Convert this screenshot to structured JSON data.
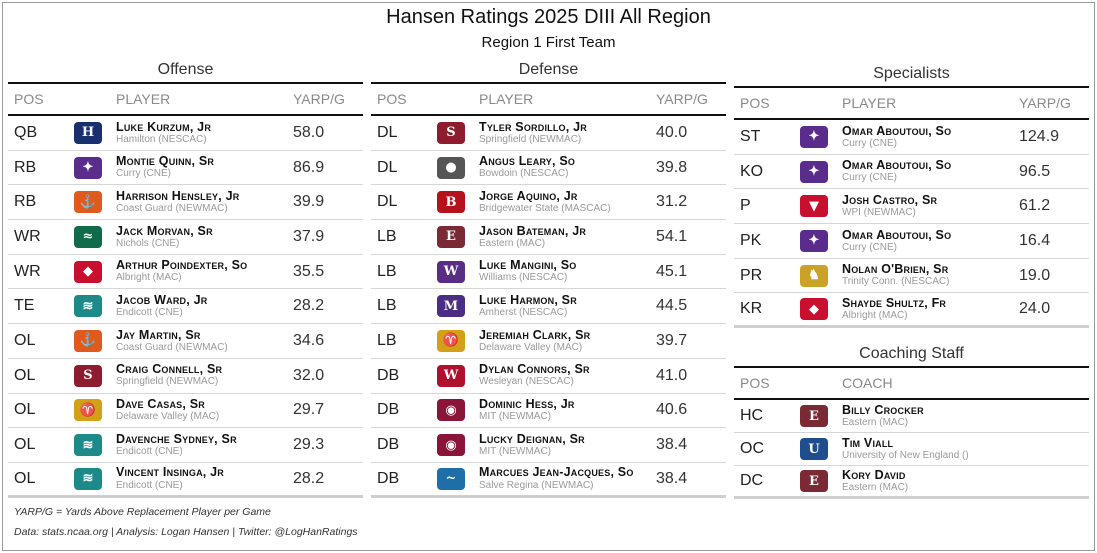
{
  "title": "Hansen Ratings 2025 DIII All Region",
  "subtitle": "Region 1 First Team",
  "headers": {
    "pos": "POS",
    "player": "PLAYER",
    "val": "YARP/G",
    "coach": "COACH"
  },
  "offense": {
    "title": "Offense",
    "rows": [
      {
        "pos": "QB",
        "name": "Luke Kurzum, Jr",
        "team": "Hamilton (NESCAC)",
        "val": "58.0",
        "logo_icon": "hamilton-logo-icon",
        "color": "#1a2f6e"
      },
      {
        "pos": "RB",
        "name": "Montie Quinn, Sr",
        "team": "Curry (CNE)",
        "val": "86.9",
        "logo_icon": "curry-logo-icon",
        "color": "#5a2d8c"
      },
      {
        "pos": "RB",
        "name": "Harrison Hensley, Jr",
        "team": "Coast Guard (NEWMAC)",
        "val": "39.9",
        "logo_icon": "coast-guard-logo-icon",
        "color": "#e05a1e"
      },
      {
        "pos": "WR",
        "name": "Jack Morvan, Sr",
        "team": "Nichols (CNE)",
        "val": "37.9",
        "logo_icon": "nichols-logo-icon",
        "color": "#0f6b4a"
      },
      {
        "pos": "WR",
        "name": "Arthur Poindexter, So",
        "team": "Albright (MAC)",
        "val": "35.5",
        "logo_icon": "albright-logo-icon",
        "color": "#c8102e"
      },
      {
        "pos": "TE",
        "name": "Jacob Ward, Jr",
        "team": "Endicott (CNE)",
        "val": "28.2",
        "logo_icon": "endicott-logo-icon",
        "color": "#1d8a8a"
      },
      {
        "pos": "OL",
        "name": "Jay Martin, Sr",
        "team": "Coast Guard (NEWMAC)",
        "val": "34.6",
        "logo_icon": "coast-guard-logo-icon",
        "color": "#e05a1e"
      },
      {
        "pos": "OL",
        "name": "Craig Connell, Sr",
        "team": "Springfield (NEWMAC)",
        "val": "32.0",
        "logo_icon": "springfield-logo-icon",
        "color": "#8c1c2e"
      },
      {
        "pos": "OL",
        "name": "Dave Casas, Sr",
        "team": "Delaware Valley (MAC)",
        "val": "29.7",
        "logo_icon": "delaware-valley-logo-icon",
        "color": "#d4a017"
      },
      {
        "pos": "OL",
        "name": "Davenche Sydney, Sr",
        "team": "Endicott (CNE)",
        "val": "29.3",
        "logo_icon": "endicott-logo-icon",
        "color": "#1d8a8a"
      },
      {
        "pos": "OL",
        "name": "Vincent Insinga, Jr",
        "team": "Endicott (CNE)",
        "val": "28.2",
        "logo_icon": "endicott-logo-icon",
        "color": "#1d8a8a"
      }
    ]
  },
  "defense": {
    "title": "Defense",
    "rows": [
      {
        "pos": "DL",
        "name": "Tyler Sordillo, Jr",
        "team": "Springfield (NEWMAC)",
        "val": "40.0",
        "logo_icon": "springfield-logo-icon",
        "color": "#8c1c2e"
      },
      {
        "pos": "DL",
        "name": "Angus Leary, So",
        "team": "Bowdoin (NESCAC)",
        "val": "39.8",
        "logo_icon": "bowdoin-logo-icon",
        "color": "#555555"
      },
      {
        "pos": "DL",
        "name": "Jorge Aquino, Jr",
        "team": "Bridgewater State (MASCAC)",
        "val": "31.2",
        "logo_icon": "bridgewater-state-logo-icon",
        "color": "#b5121b"
      },
      {
        "pos": "LB",
        "name": "Jason Bateman, Jr",
        "team": "Eastern (MAC)",
        "val": "54.1",
        "logo_icon": "eastern-logo-icon",
        "color": "#7a2a35"
      },
      {
        "pos": "LB",
        "name": "Luke Mangini, So",
        "team": "Williams (NESCAC)",
        "val": "45.1",
        "logo_icon": "williams-logo-icon",
        "color": "#5b2c83"
      },
      {
        "pos": "LB",
        "name": "Luke Harmon, Sr",
        "team": "Amherst (NESCAC)",
        "val": "44.5",
        "logo_icon": "amherst-logo-icon",
        "color": "#4b2e83"
      },
      {
        "pos": "LB",
        "name": "Jeremiah Clark, Sr",
        "team": "Delaware Valley (MAC)",
        "val": "39.7",
        "logo_icon": "delaware-valley-logo-icon",
        "color": "#d4a017"
      },
      {
        "pos": "DB",
        "name": "Dylan Connors, Sr",
        "team": "Wesleyan (NESCAC)",
        "val": "41.0",
        "logo_icon": "wesleyan-logo-icon",
        "color": "#b10f2e"
      },
      {
        "pos": "DB",
        "name": "Dominic Hess, Jr",
        "team": "MIT (NEWMAC)",
        "val": "40.6",
        "logo_icon": "mit-logo-icon",
        "color": "#8a1538"
      },
      {
        "pos": "DB",
        "name": "Lucky Deignan, Sr",
        "team": "MIT (NEWMAC)",
        "val": "38.4",
        "logo_icon": "mit-logo-icon",
        "color": "#8a1538"
      },
      {
        "pos": "DB",
        "name": "Marcues Jean-Jacques, So",
        "team": "Salve Regina (NEWMAC)",
        "val": "38.4",
        "logo_icon": "salve-regina-logo-icon",
        "color": "#1e6fa8"
      }
    ]
  },
  "specialists": {
    "title": "Specialists",
    "rows": [
      {
        "pos": "ST",
        "name": "Omar Aboutoui, So",
        "team": "Curry (CNE)",
        "val": "124.9",
        "logo_icon": "curry-logo-icon",
        "color": "#5a2d8c"
      },
      {
        "pos": "KO",
        "name": "Omar Aboutoui, So",
        "team": "Curry (CNE)",
        "val": "96.5",
        "logo_icon": "curry-logo-icon",
        "color": "#5a2d8c"
      },
      {
        "pos": "P",
        "name": "Josh Castro, Sr",
        "team": "WPI (NEWMAC)",
        "val": "61.2",
        "logo_icon": "wpi-logo-icon",
        "color": "#c8102e"
      },
      {
        "pos": "PK",
        "name": "Omar Aboutoui, So",
        "team": "Curry (CNE)",
        "val": "16.4",
        "logo_icon": "curry-logo-icon",
        "color": "#5a2d8c"
      },
      {
        "pos": "PR",
        "name": "Nolan O'Brien, Sr",
        "team": "Trinity Conn. (NESCAC)",
        "val": "19.0",
        "logo_icon": "trinity-logo-icon",
        "color": "#c9a227"
      },
      {
        "pos": "KR",
        "name": "Shayde Shultz, Fr",
        "team": "Albright (MAC)",
        "val": "24.0",
        "logo_icon": "albright-logo-icon",
        "color": "#c8102e"
      }
    ]
  },
  "coaching": {
    "title": "Coaching Staff",
    "rows": [
      {
        "pos": "HC",
        "name": "Billy Crocker",
        "team": "Eastern (MAC)",
        "logo_icon": "eastern-logo-icon",
        "color": "#7a2a35"
      },
      {
        "pos": "OC",
        "name": "Tim Viall",
        "team": "University of New England ()",
        "logo_icon": "une-logo-icon",
        "color": "#1f4e8c"
      },
      {
        "pos": "DC",
        "name": "Kory David",
        "team": "Eastern (MAC)",
        "logo_icon": "eastern-logo-icon",
        "color": "#7a2a35"
      }
    ]
  },
  "footnotes": {
    "definition": "YARP/G = Yards Above Replacement Player per Game",
    "credits": "Data: stats.ncaa.org | Analysis: Logan Hansen | Twitter: @LogHanRatings"
  }
}
